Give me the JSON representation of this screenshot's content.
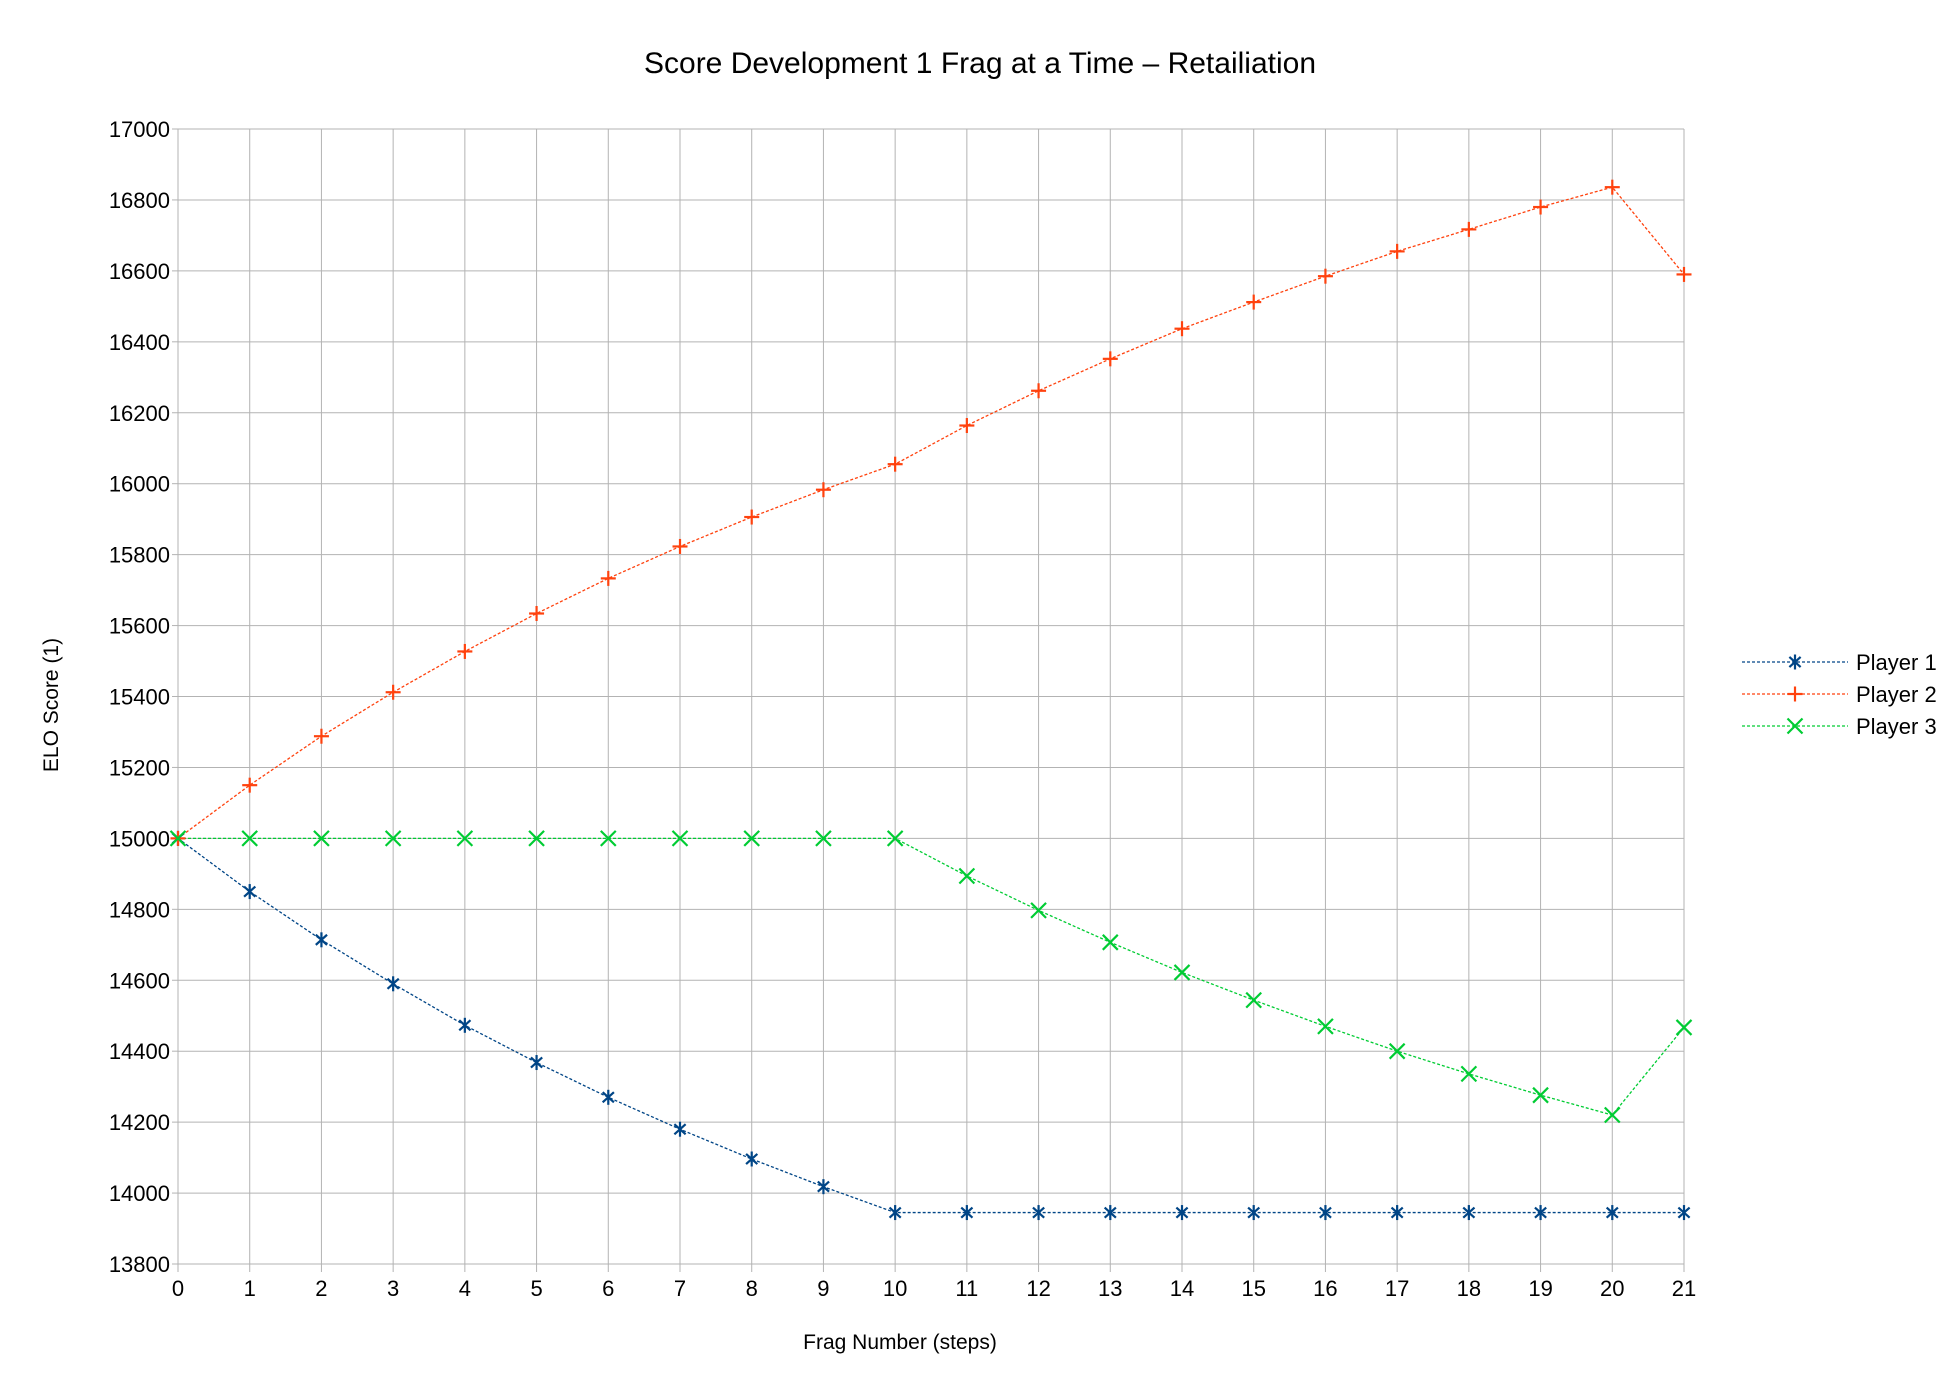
{
  "chart_data": {
    "type": "line",
    "title": "Score Development 1 Frag at a Time – Retailiation",
    "xlabel": "Frag Number (steps)",
    "ylabel": "ELO Score (1)",
    "xlim": [
      0,
      21
    ],
    "ylim": [
      13800,
      17000
    ],
    "x_ticks": [
      0,
      1,
      2,
      3,
      4,
      5,
      6,
      7,
      8,
      9,
      10,
      11,
      12,
      13,
      14,
      15,
      16,
      17,
      18,
      19,
      20,
      21
    ],
    "y_ticks": [
      13800,
      14000,
      14200,
      14400,
      14600,
      14800,
      15000,
      15200,
      15400,
      15600,
      15800,
      16000,
      16200,
      16400,
      16600,
      16800,
      17000
    ],
    "grid": true,
    "legend_position": "right",
    "x": [
      0,
      1,
      2,
      3,
      4,
      5,
      6,
      7,
      8,
      9,
      10,
      11,
      12,
      13,
      14,
      15,
      16,
      17,
      18,
      19,
      20,
      21
    ],
    "series": [
      {
        "name": "Player 1",
        "color": "#004586",
        "marker": "asterisk",
        "values": [
          15000,
          14850,
          14714,
          14590,
          14473,
          14368,
          14270,
          14180,
          14096,
          14018,
          13945,
          13945,
          13945,
          13945,
          13945,
          13945,
          13945,
          13945,
          13945,
          13945,
          13945,
          13945
        ]
      },
      {
        "name": "Player 2",
        "color": "#ff420e",
        "marker": "plus",
        "values": [
          15000,
          15150,
          15288,
          15412,
          15527,
          15634,
          15733,
          15823,
          15906,
          15983,
          16055,
          16164,
          16262,
          16352,
          16437,
          16512,
          16585,
          16655,
          16717,
          16780,
          16836,
          16590
        ]
      },
      {
        "name": "Player 3",
        "color": "#00cc33",
        "marker": "x",
        "values": [
          15000,
          15000,
          15000,
          15000,
          15000,
          15000,
          15000,
          15000,
          15000,
          15000,
          15000,
          14894,
          14797,
          14707,
          14622,
          14544,
          14470,
          14400,
          14336,
          14276,
          14220,
          14467
        ]
      }
    ]
  }
}
